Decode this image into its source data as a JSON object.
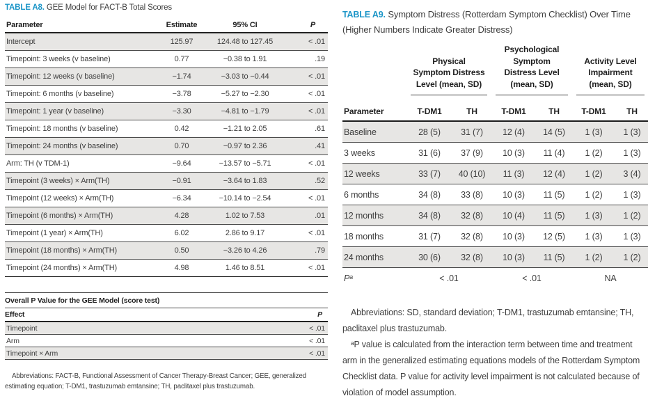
{
  "colors": {
    "accent_blue": "#1d96c8",
    "row_shade": "#e7e6e4"
  },
  "left": {
    "table_a8": {
      "label": "TABLE A8.",
      "title": "GEE Model for FACT-B Total Scores",
      "headers": {
        "parameter": "Parameter",
        "estimate": "Estimate",
        "ci": "95% CI",
        "p": "P"
      },
      "rows": [
        {
          "parameter": "Intercept",
          "estimate": "125.97",
          "ci": "124.48 to 127.45",
          "p": "< .01"
        },
        {
          "parameter": "Timepoint: 3 weeks (v baseline)",
          "estimate": "0.77",
          "ci": "−0.38 to 1.91",
          "p": ".19"
        },
        {
          "parameter": "Timepoint: 12 weeks (v baseline)",
          "estimate": "−1.74",
          "ci": "−3.03 to −0.44",
          "p": "< .01"
        },
        {
          "parameter": "Timepoint: 6 months (v baseline)",
          "estimate": "−3.78",
          "ci": "−5.27 to −2.30",
          "p": "< .01"
        },
        {
          "parameter": "Timepoint: 1 year (v baseline)",
          "estimate": "−3.30",
          "ci": "−4.81 to −1.79",
          "p": "< .01"
        },
        {
          "parameter": "Timepoint: 18 months (v baseline)",
          "estimate": "0.42",
          "ci": "−1.21 to 2.05",
          "p": ".61"
        },
        {
          "parameter": "Timepoint: 24 months (v baseline)",
          "estimate": "0.70",
          "ci": "−0.97 to 2.36",
          "p": ".41"
        },
        {
          "parameter": "Arm: TH (v TDM-1)",
          "estimate": "−9.64",
          "ci": "−13.57 to −5.71",
          "p": "< .01"
        },
        {
          "parameter": "Timepoint (3 weeks) × Arm(TH)",
          "estimate": "−0.91",
          "ci": "−3.64 to 1.83",
          "p": ".52"
        },
        {
          "parameter": "Timepoint (12 weeks) × Arm(TH)",
          "estimate": "−6.34",
          "ci": "−10.14 to −2.54",
          "p": "< .01"
        },
        {
          "parameter": "Timepoint (6 months) × Arm(TH)",
          "estimate": "4.28",
          "ci": "1.02 to 7.53",
          "p": ".01"
        },
        {
          "parameter": "Timepoint (1 year) × Arm(TH)",
          "estimate": "6.02",
          "ci": "2.86 to 9.17",
          "p": "< .01"
        },
        {
          "parameter": "Timepoint (18 months) × Arm(TH)",
          "estimate": "0.50",
          "ci": "−3.26 to 4.26",
          "p": ".79"
        },
        {
          "parameter": "Timepoint (24 months) × Arm(TH)",
          "estimate": "4.98",
          "ci": "1.46 to 8.51",
          "p": "< .01"
        }
      ]
    },
    "overall": {
      "title": "Overall P Value for the GEE Model (score test)",
      "headers": {
        "effect": "Effect",
        "p": "P"
      },
      "rows": [
        {
          "effect": "Timepoint",
          "p": "< .01"
        },
        {
          "effect": "Arm",
          "p": "< .01"
        },
        {
          "effect": "Timepoint × Arm",
          "p": "< .01"
        }
      ]
    },
    "footnote": "Abbreviations: FACT-B, Functional Assessment of Cancer Therapy-Breast Cancer; GEE, generalized estimating equation; T-DM1, trastuzumab emtansine; TH, paclitaxel plus trastuzumab."
  },
  "right": {
    "table_a9": {
      "label": "TABLE A9.",
      "title": "Symptom Distress (Rotterdam Symptom Checklist) Over Time (Higher Numbers Indicate Greater Distress)",
      "groups": [
        "Physical\nSymptom Distress\nLevel (mean, SD)",
        "Psychological\nSymptom\nDistress Level\n(mean, SD)",
        "Activity Level\nImpairment\n(mean, SD)"
      ],
      "sub_headers": {
        "parameter": "Parameter",
        "cols": [
          "T-DM1",
          "TH",
          "T-DM1",
          "TH",
          "T-DM1",
          "TH"
        ]
      },
      "rows": [
        {
          "label": "Baseline",
          "values": [
            "28 (5)",
            "31 (7)",
            "12 (4)",
            "14 (5)",
            "1 (3)",
            "1 (3)"
          ]
        },
        {
          "label": "3 weeks",
          "values": [
            "31 (6)",
            "37 (9)",
            "10 (3)",
            "11 (4)",
            "1 (2)",
            "1 (3)"
          ]
        },
        {
          "label": "12 weeks",
          "values": [
            "33 (7)",
            "40 (10)",
            "11 (3)",
            "12 (4)",
            "1 (2)",
            "3 (4)"
          ]
        },
        {
          "label": "6 months",
          "values": [
            "34 (8)",
            "33 (8)",
            "10 (3)",
            "11 (5)",
            "1 (2)",
            "1 (3)"
          ]
        },
        {
          "label": "12 months",
          "values": [
            "34 (8)",
            "32 (8)",
            "10 (4)",
            "11 (5)",
            "1 (3)",
            "1 (2)"
          ]
        },
        {
          "label": "18 months",
          "values": [
            "31 (7)",
            "32 (8)",
            "10 (3)",
            "12 (5)",
            "1 (3)",
            "1 (3)"
          ]
        },
        {
          "label": "24 months",
          "values": [
            "30 (6)",
            "32 (8)",
            "10 (3)",
            "11 (5)",
            "1 (2)",
            "1 (2)"
          ]
        }
      ],
      "p_row": {
        "label": "Pᵃ",
        "physical": "< .01",
        "psychological": "< .01",
        "activity": "NA"
      },
      "footnote_abbrev": "Abbreviations: SD, standard deviation; T-DM1, trastuzumab emtansine; TH, paclitaxel plus trastuzumab.",
      "footnote_p": "ᵃP value is calculated from the interaction term between time and treatment arm in the generalized estimating equations models of the Rotterdam Symptom Checklist data. P value for activity level impairment is not calculated because of violation of model assumption."
    }
  }
}
